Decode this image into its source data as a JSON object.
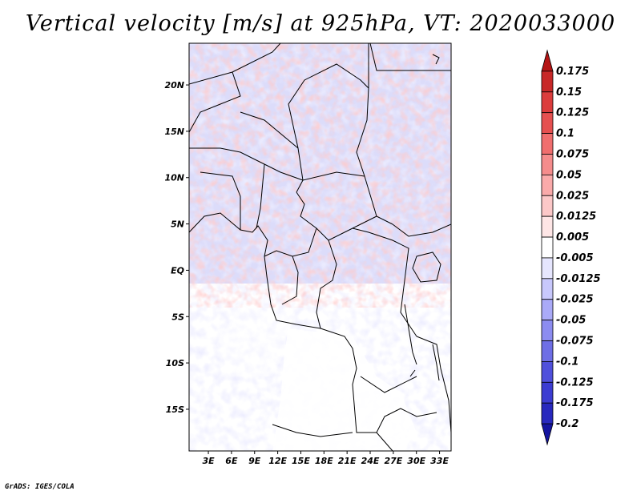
{
  "title": "Vertical velocity [m/s] at 925hPa, VT: 2020033000",
  "footer": "GrADS: IGES/COLA",
  "lat_labels": [
    "20N",
    "15N",
    "10N",
    "5N",
    "EQ",
    "5S",
    "10S",
    "15S"
  ],
  "lat_values": [
    20,
    15,
    10,
    5,
    0,
    -5,
    -10,
    -15
  ],
  "lon_labels": [
    "3E",
    "6E",
    "9E",
    "12E",
    "15E",
    "18E",
    "21E",
    "24E",
    "27E",
    "30E",
    "33E"
  ],
  "lon_values": [
    3,
    6,
    9,
    12,
    15,
    18,
    21,
    24,
    27,
    30,
    33
  ],
  "map_extent": {
    "lon_min": 0.5,
    "lon_max": 34.5,
    "lat_min": -19.5,
    "lat_max": 24.5
  },
  "colorbar": {
    "levels": [
      "0.175",
      "0.15",
      "0.125",
      "0.1",
      "0.075",
      "0.05",
      "0.025",
      "0.0125",
      "0.005",
      "-0.005",
      "-0.0125",
      "-0.025",
      "-0.05",
      "-0.075",
      "-0.1",
      "-0.125",
      "-0.175",
      "-0.2"
    ],
    "colors": [
      "#b41414",
      "#c82828",
      "#dc3c3c",
      "#e65050",
      "#f06e6e",
      "#f58c8c",
      "#faaaaa",
      "#fcc8c8",
      "#fee6e6",
      "#ffffff",
      "#e6e6fe",
      "#c8c8fc",
      "#aaaaf8",
      "#8c8cf0",
      "#6e6ee6",
      "#5050dc",
      "#3c3cd2",
      "#2828be",
      "#1414a0"
    ]
  }
}
